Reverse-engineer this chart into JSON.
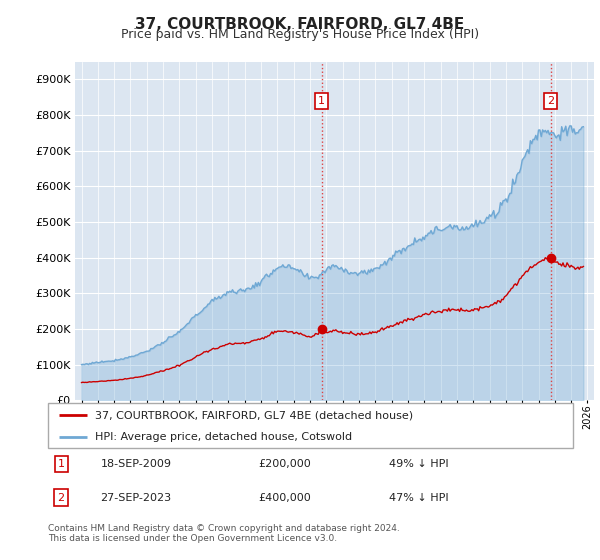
{
  "title": "37, COURTBROOK, FAIRFORD, GL7 4BE",
  "subtitle": "Price paid vs. HM Land Registry's House Price Index (HPI)",
  "hpi_label": "HPI: Average price, detached house, Cotswold",
  "property_label": "37, COURTBROOK, FAIRFORD, GL7 4BE (detached house)",
  "hpi_color": "#6fa8d4",
  "hpi_fill_color": "#dbe8f4",
  "property_color": "#cc0000",
  "plot_bg": "#dce6f1",
  "annotation1": {
    "num": "1",
    "date": "18-SEP-2009",
    "price": "£200,000",
    "hpi_pct": "49% ↓ HPI",
    "x_year": 2009.72
  },
  "annotation2": {
    "num": "2",
    "date": "27-SEP-2023",
    "price": "£400,000",
    "hpi_pct": "47% ↓ HPI",
    "x_year": 2023.74
  },
  "sale1_year": 2009.72,
  "sale1_price": 200000,
  "sale2_year": 2023.74,
  "sale2_price": 400000,
  "ylim_min": 0,
  "ylim_max": 950000,
  "yticks": [
    0,
    100000,
    200000,
    300000,
    400000,
    500000,
    600000,
    700000,
    800000,
    900000
  ],
  "xlim_min": 1994.6,
  "xlim_max": 2026.4,
  "footer": "Contains HM Land Registry data © Crown copyright and database right 2024.\nThis data is licensed under the Open Government Licence v3.0."
}
